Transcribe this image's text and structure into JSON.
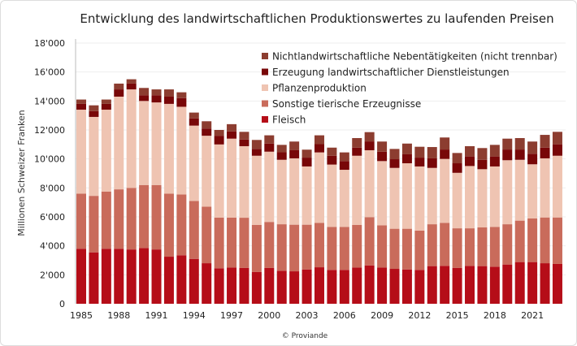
{
  "chart_data": {
    "type": "bar",
    "stacked": true,
    "title": "Entwicklung des landwirtschaftlichen Produktionswertes zu laufenden Preisen",
    "xlabel": "",
    "ylabel": "Millionen  Schweizer Franken",
    "ylim": [
      0,
      18000
    ],
    "yticks": [
      "0",
      "2'000",
      "4'000",
      "6'000",
      "8'000",
      "10'000",
      "12'000",
      "14'000",
      "16'000",
      "18'000"
    ],
    "xticks": [
      "1985",
      "1988",
      "1991",
      "1994",
      "1997",
      "2000",
      "2003",
      "2006",
      "2009",
      "2012",
      "2015",
      "2018",
      "2021"
    ],
    "grid": true,
    "legend_position": "top-right",
    "categories": [
      1985,
      1986,
      1987,
      1988,
      1989,
      1990,
      1991,
      1992,
      1993,
      1994,
      1995,
      1996,
      1997,
      1998,
      1999,
      2000,
      2001,
      2002,
      2003,
      2004,
      2005,
      2006,
      2007,
      2008,
      2009,
      2010,
      2011,
      2012,
      2013,
      2014,
      2015,
      2016,
      2017,
      2018,
      2019,
      2020,
      2021,
      2022,
      2023
    ],
    "series": [
      {
        "name": "Fleisch",
        "color": "#b50d18",
        "values": [
          3800,
          3550,
          3800,
          3800,
          3750,
          3850,
          3750,
          3250,
          3350,
          3100,
          2800,
          2450,
          2500,
          2470,
          2190,
          2470,
          2280,
          2240,
          2370,
          2520,
          2340,
          2340,
          2500,
          2650,
          2500,
          2410,
          2370,
          2340,
          2600,
          2620,
          2470,
          2620,
          2600,
          2560,
          2710,
          2880,
          2880,
          2800,
          2750
        ]
      },
      {
        "name": "Sonstige tierische Erzeugnisse",
        "color": "#c96b5b",
        "values": [
          3800,
          3900,
          3950,
          4100,
          4250,
          4350,
          4450,
          4350,
          4200,
          4000,
          3900,
          3500,
          3450,
          3470,
          3250,
          3180,
          3210,
          3220,
          3090,
          3070,
          2970,
          2970,
          2940,
          3330,
          2920,
          2770,
          2810,
          2710,
          2890,
          2970,
          2740,
          2590,
          2670,
          2750,
          2780,
          2860,
          3010,
          3160,
          3210
        ]
      },
      {
        "name": "Pflanzenproduktion",
        "color": "#efc4b2",
        "values": [
          5800,
          5450,
          5650,
          6400,
          6800,
          5800,
          5700,
          6200,
          6050,
          5200,
          4900,
          5050,
          5450,
          4940,
          4780,
          4850,
          4450,
          4580,
          4020,
          4860,
          4300,
          3940,
          4780,
          4620,
          4430,
          4200,
          4520,
          4430,
          3890,
          4410,
          3830,
          4300,
          4020,
          4170,
          4420,
          4200,
          3740,
          4080,
          4260
        ]
      },
      {
        "name": "Erzeugung landwirtschaftlicher Dienstleistungen",
        "color": "#780708",
        "values": [
          400,
          400,
          400,
          500,
          400,
          400,
          500,
          500,
          600,
          500,
          500,
          600,
          500,
          460,
          470,
          560,
          520,
          560,
          610,
          570,
          610,
          600,
          560,
          610,
          650,
          600,
          620,
          610,
          660,
          650,
          660,
          660,
          650,
          690,
          740,
          710,
          730,
          740,
          790
        ]
      },
      {
        "name": "Nichtlandwirtschaftliche Nebentätigkeiten (nicht trennbar)",
        "color": "#8c3d30",
        "values": [
          300,
          400,
          300,
          400,
          300,
          500,
          400,
          500,
          400,
          400,
          500,
          400,
          500,
          530,
          620,
          570,
          510,
          600,
          550,
          610,
          560,
          600,
          660,
          640,
          700,
          710,
          740,
          750,
          780,
          830,
          710,
          710,
          810,
          800,
          750,
          790,
          840,
          880,
          860
        ]
      }
    ],
    "legend_order": [
      4,
      3,
      2,
      1,
      0
    ]
  },
  "credit": "© Proviande"
}
